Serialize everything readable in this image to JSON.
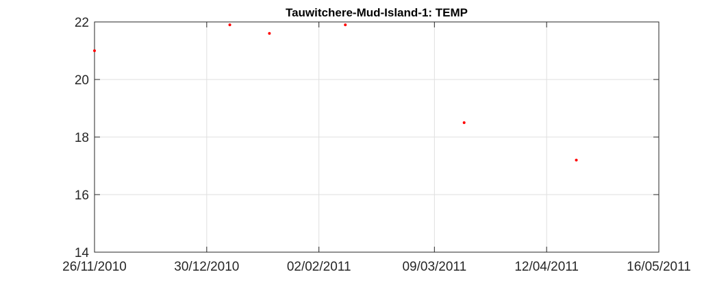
{
  "chart_data": {
    "type": "scatter",
    "title": "Tauwitchere-Mud-Island-1: TEMP",
    "xlabel": "",
    "ylabel": "",
    "x_ticks": [
      "26/11/2010",
      "30/12/2010",
      "02/02/2011",
      "09/03/2011",
      "12/04/2011",
      "16/05/2011"
    ],
    "x_tick_dates": [
      "2010-11-26",
      "2010-12-30",
      "2011-02-02",
      "2011-03-09",
      "2011-04-12",
      "2011-05-16"
    ],
    "xlim": [
      "2010-11-26",
      "2011-05-16"
    ],
    "y_ticks": [
      "14",
      "16",
      "18",
      "20",
      "22"
    ],
    "ylim": [
      14,
      22
    ],
    "grid": true,
    "marker_color": "#ff0000",
    "points": [
      {
        "x": "2010-11-26",
        "y": 21.0
      },
      {
        "x": "2011-01-06",
        "y": 21.9
      },
      {
        "x": "2011-01-18",
        "y": 21.6
      },
      {
        "x": "2011-02-10",
        "y": 21.9
      },
      {
        "x": "2011-03-18",
        "y": 18.5
      },
      {
        "x": "2011-04-21",
        "y": 17.2
      }
    ]
  }
}
